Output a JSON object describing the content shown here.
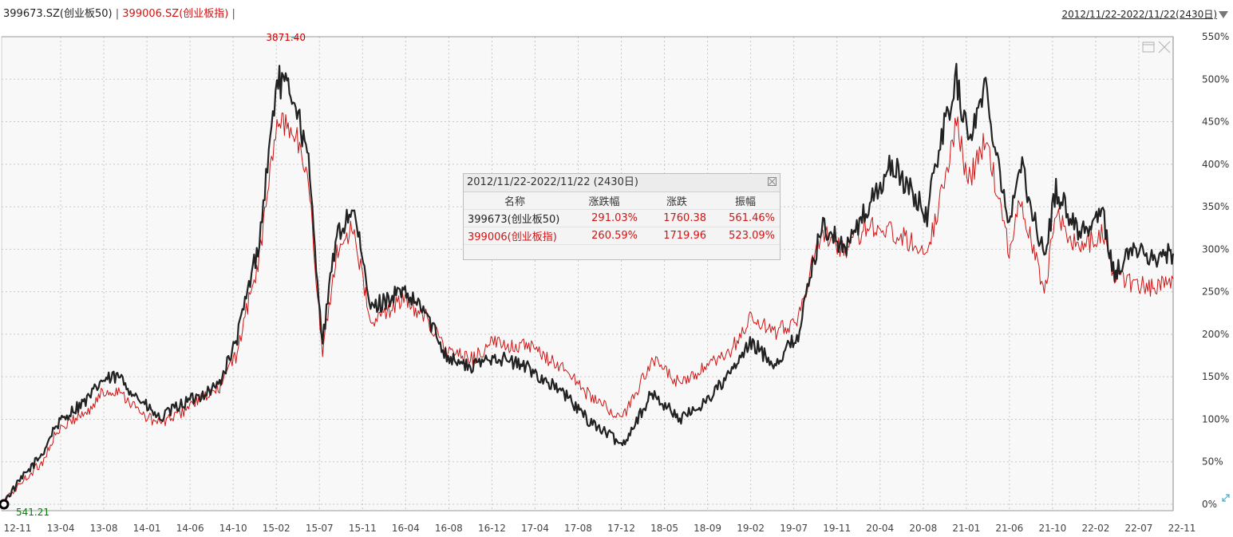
{
  "legend": {
    "series1": "399673.SZ(创业板50)",
    "sep1": "|",
    "series2": "399006.SZ(创业板指)",
    "sep2": "|"
  },
  "range_link": "2012/11/22-2022/11/22(2430日)",
  "colors": {
    "series1": "#222222",
    "series2": "#d01414",
    "max_label": "#cc0000",
    "min_label": "#008000"
  },
  "panel": {
    "title": "2012/11/22-2022/11/22 (2430日)",
    "headers": [
      "名称",
      "涨跌幅",
      "涨跌",
      "振幅"
    ],
    "rows": [
      {
        "name": "399673(创业板50)",
        "pct": "291.03%",
        "chg": "1760.38",
        "amp": "561.46%"
      },
      {
        "name": "399006(创业板指)",
        "pct": "260.59%",
        "chg": "1719.96",
        "amp": "523.09%"
      }
    ]
  },
  "chart_data": {
    "type": "line",
    "y_unit": "%",
    "ylim": [
      0,
      550
    ],
    "y_ticks": [
      "550%",
      "500%",
      "450%",
      "400%",
      "350%",
      "300%",
      "250%",
      "200%",
      "150%",
      "100%",
      "50%",
      "0%"
    ],
    "x_ticks": [
      "12-11",
      "13-04",
      "13-08",
      "14-01",
      "14-06",
      "14-10",
      "15-02",
      "15-07",
      "15-11",
      "16-04",
      "16-08",
      "16-12",
      "17-04",
      "17-08",
      "17-12",
      "18-05",
      "18-09",
      "19-02",
      "19-07",
      "19-11",
      "20-04",
      "20-08",
      "21-01",
      "21-06",
      "21-10",
      "22-02",
      "22-07",
      "22-11"
    ],
    "max_label": "3871.40",
    "min_label": "541.21",
    "series": [
      {
        "name": "399673.SZ(创业板50)",
        "x": [
          0,
          0.02,
          0.035,
          0.045,
          0.06,
          0.075,
          0.085,
          0.1,
          0.12,
          0.135,
          0.15,
          0.165,
          0.185,
          0.2,
          0.22,
          0.235,
          0.25,
          0.262,
          0.274,
          0.285,
          0.3,
          0.315,
          0.34,
          0.36,
          0.38,
          0.4,
          0.42,
          0.45,
          0.48,
          0.5,
          0.52,
          0.53,
          0.555,
          0.58,
          0.6,
          0.62,
          0.64,
          0.66,
          0.68,
          0.7,
          0.72,
          0.74,
          0.76,
          0.79,
          0.8,
          0.815,
          0.825,
          0.84,
          0.86,
          0.87,
          0.89,
          0.9,
          0.92,
          0.94,
          0.95,
          0.965,
          0.985,
          1.0
        ],
        "values": [
          0,
          35,
          60,
          90,
          110,
          125,
          145,
          150,
          120,
          100,
          115,
          125,
          140,
          190,
          310,
          500,
          480,
          400,
          190,
          310,
          350,
          230,
          250,
          230,
          175,
          160,
          175,
          160,
          130,
          100,
          80,
          70,
          130,
          100,
          120,
          150,
          190,
          165,
          200,
          330,
          300,
          350,
          400,
          340,
          420,
          500,
          430,
          490,
          330,
          400,
          290,
          370,
          320,
          340,
          270,
          300,
          290,
          295
        ]
      },
      {
        "name": "399006.SZ(创业板指)",
        "x": [
          0,
          0.02,
          0.035,
          0.045,
          0.06,
          0.075,
          0.085,
          0.1,
          0.12,
          0.135,
          0.15,
          0.165,
          0.185,
          0.2,
          0.22,
          0.235,
          0.25,
          0.262,
          0.274,
          0.285,
          0.3,
          0.315,
          0.34,
          0.36,
          0.38,
          0.4,
          0.42,
          0.45,
          0.48,
          0.5,
          0.52,
          0.53,
          0.555,
          0.58,
          0.6,
          0.62,
          0.64,
          0.66,
          0.68,
          0.7,
          0.72,
          0.74,
          0.76,
          0.79,
          0.8,
          0.815,
          0.825,
          0.84,
          0.86,
          0.87,
          0.89,
          0.9,
          0.92,
          0.94,
          0.95,
          0.965,
          0.985,
          1.0
        ],
        "values": [
          0,
          30,
          50,
          80,
          100,
          110,
          130,
          135,
          105,
          95,
          105,
          120,
          135,
          175,
          290,
          450,
          440,
          380,
          175,
          290,
          330,
          210,
          240,
          225,
          180,
          170,
          190,
          185,
          160,
          130,
          110,
          100,
          170,
          140,
          160,
          175,
          220,
          200,
          220,
          320,
          300,
          330,
          320,
          300,
          350,
          450,
          380,
          430,
          300,
          360,
          250,
          340,
          300,
          320,
          270,
          260,
          255,
          265
        ]
      }
    ]
  }
}
